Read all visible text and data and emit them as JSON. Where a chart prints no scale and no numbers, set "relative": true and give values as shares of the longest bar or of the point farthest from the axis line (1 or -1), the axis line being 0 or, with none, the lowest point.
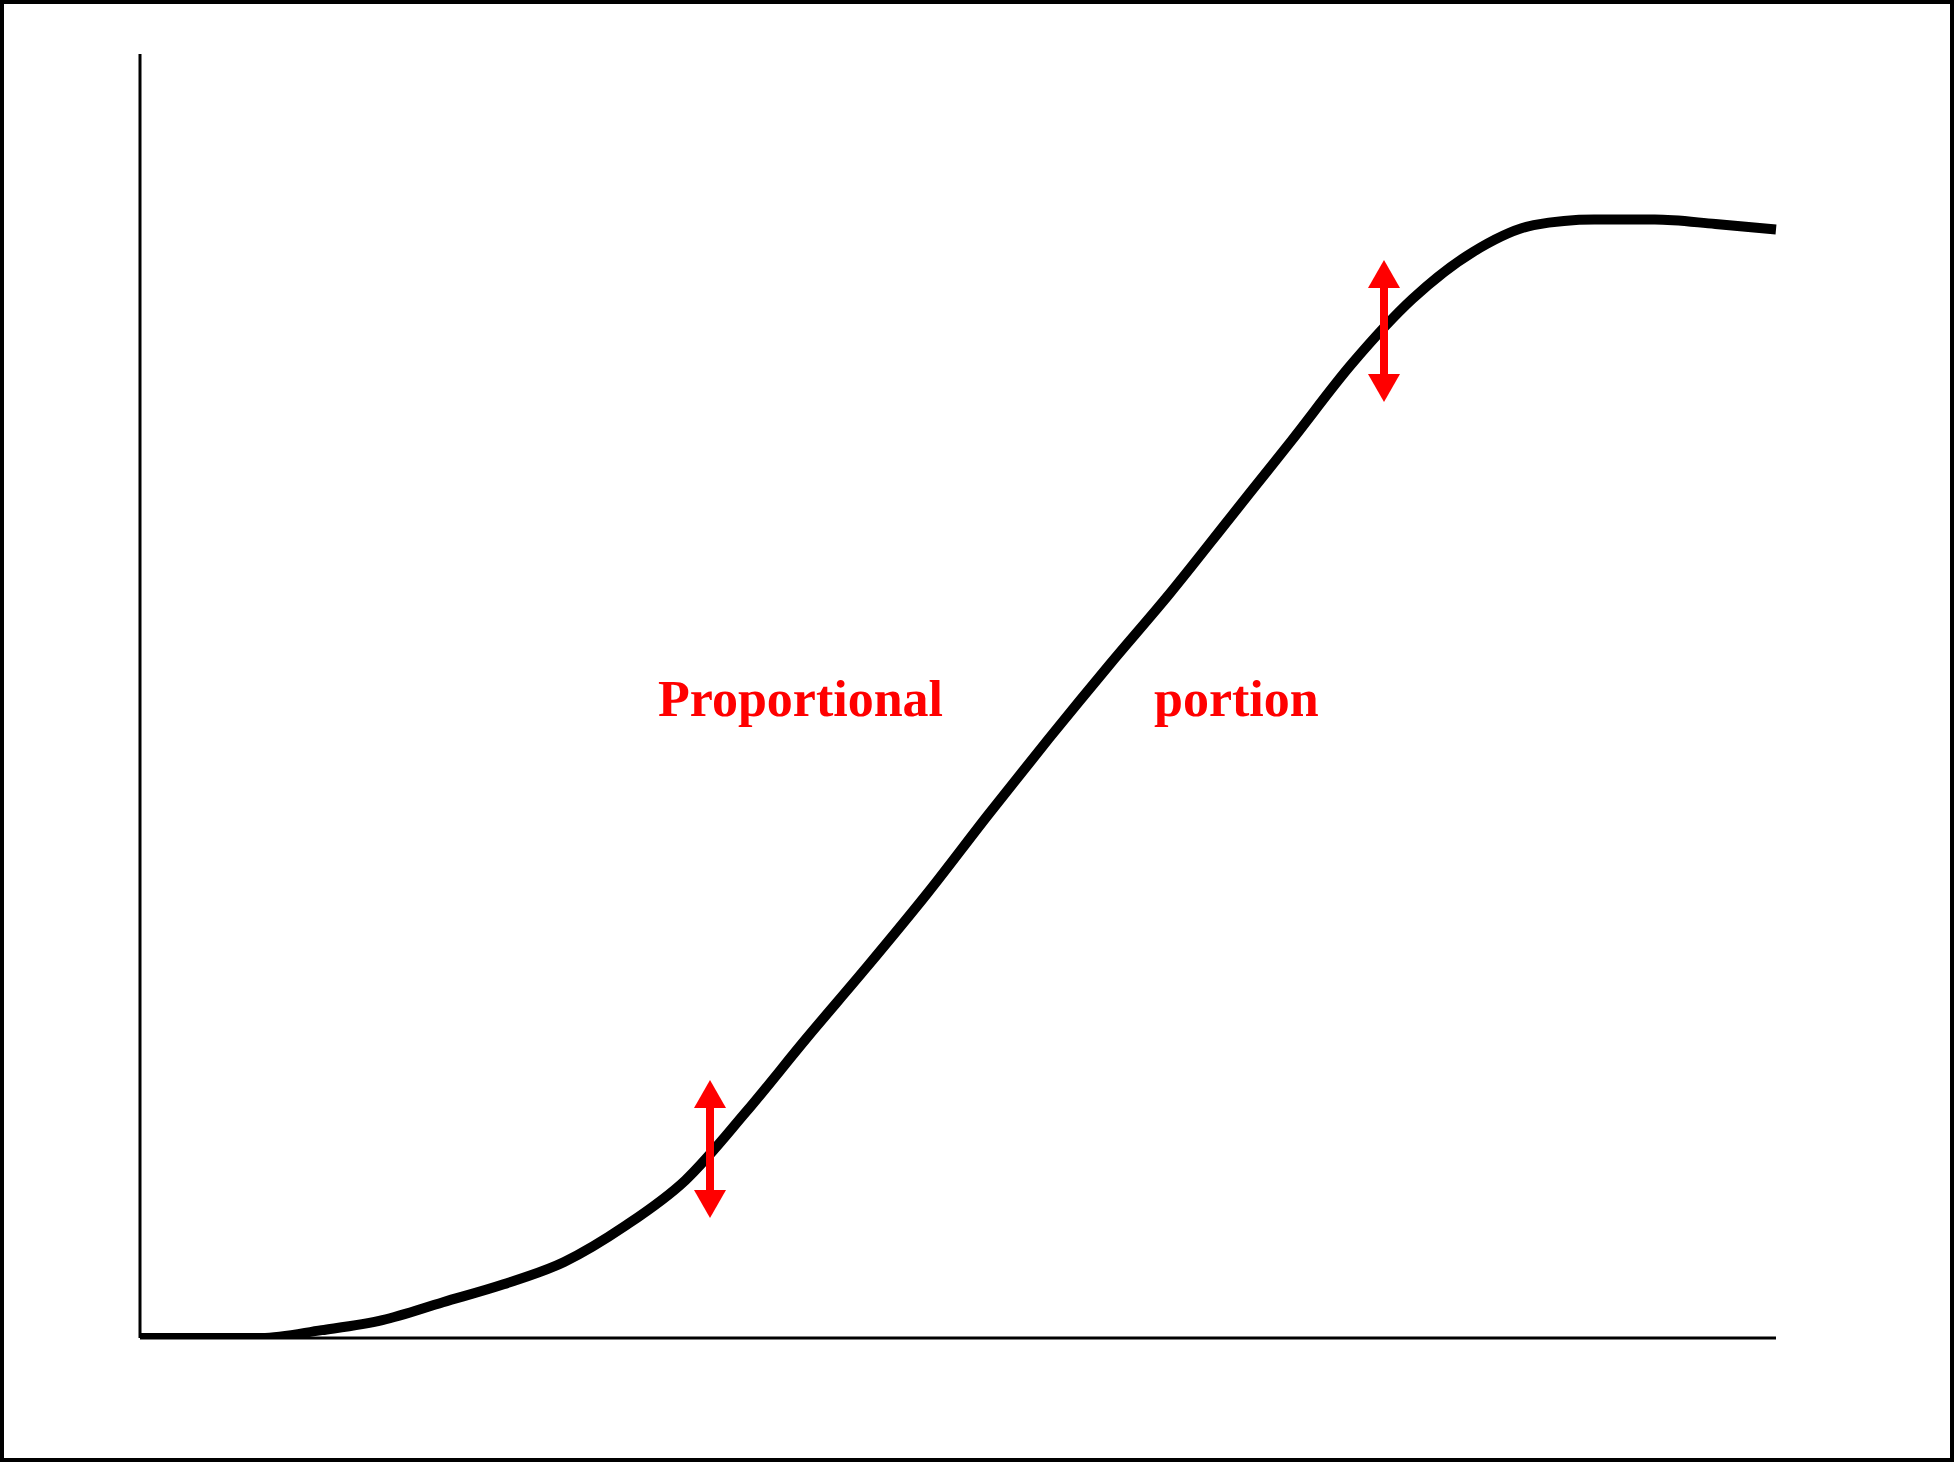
{
  "chart_data": {
    "type": "line",
    "relative": true,
    "categories": [
      null,
      null,
      null,
      null,
      null,
      null,
      null,
      null,
      null,
      null,
      null,
      null,
      null,
      null,
      null,
      null,
      null,
      null,
      null,
      null,
      null,
      null,
      null,
      null,
      null,
      null,
      null,
      null
    ],
    "series": [
      {
        "color": "#000000",
        "values": [
          0,
          0,
          0,
          0.007,
          0.016,
          0.032,
          0.048,
          0.068,
          0.1,
          0.141,
          0.202,
          0.268,
          0.332,
          0.398,
          0.468,
          0.536,
          0.602,
          0.666,
          0.734,
          0.802,
          0.871,
          0.929,
          0.971,
          0.995,
          1,
          1,
          0.996,
          0.991
        ]
      }
    ],
    "annotations": [
      "Proportional",
      "portion"
    ],
    "marker": "none",
    "line_style": "solid"
  }
}
